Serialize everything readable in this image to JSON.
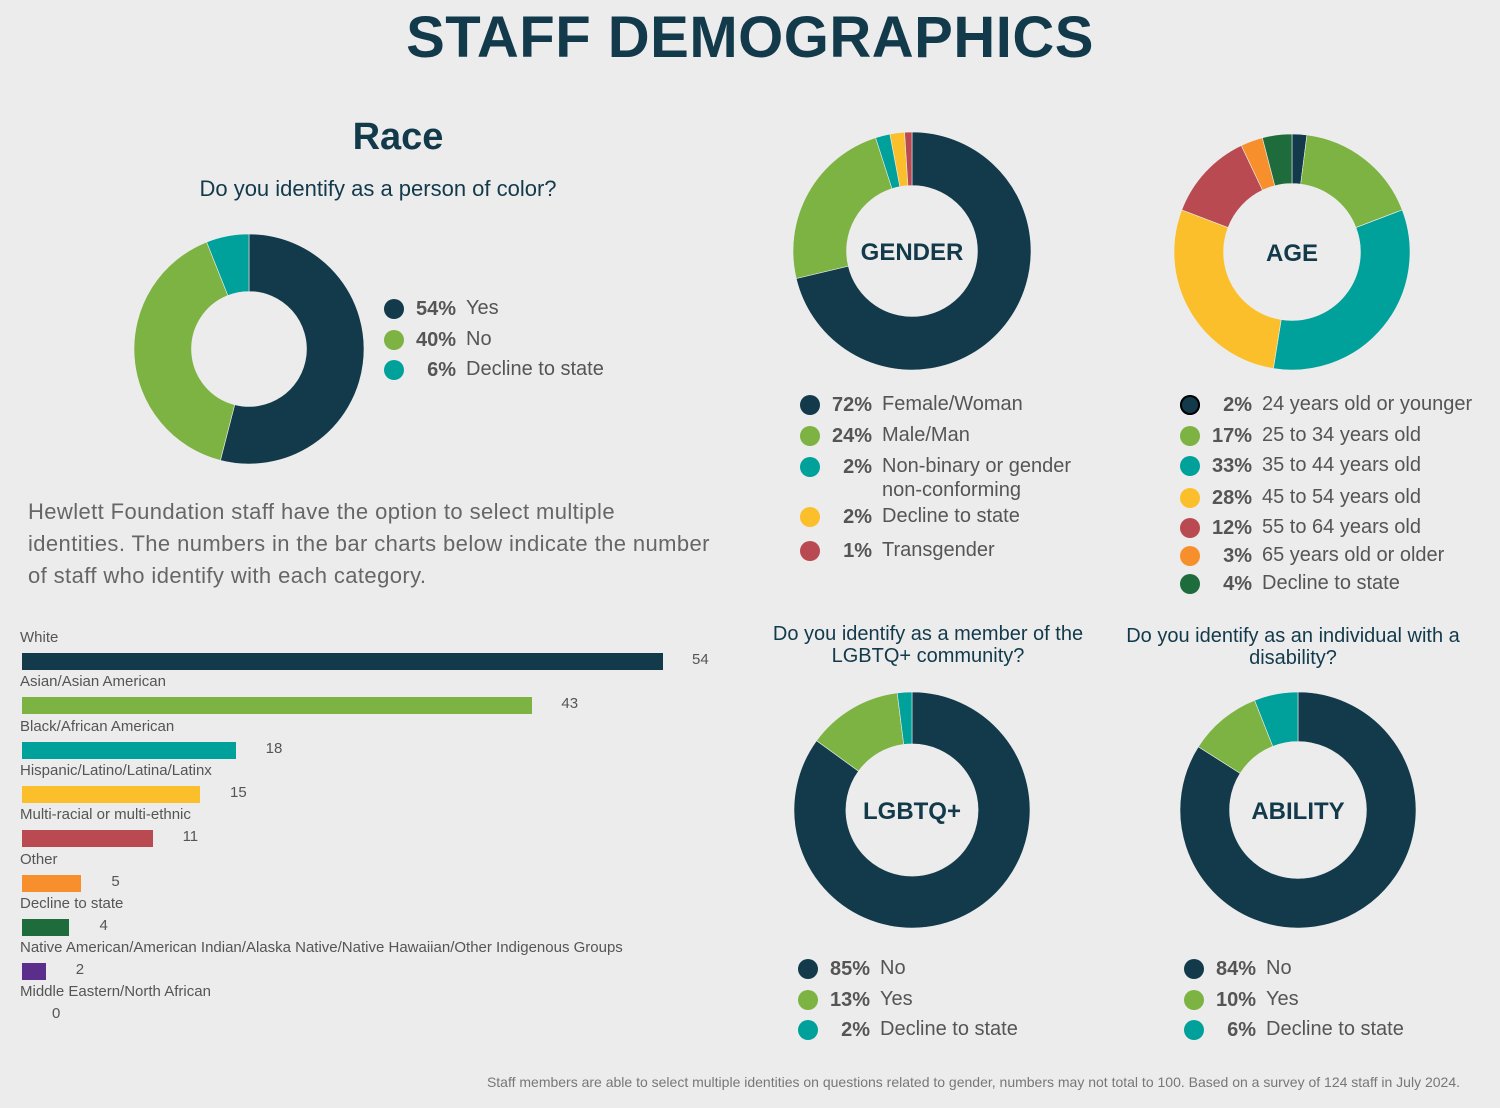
{
  "title": "STAFF DEMOGRAPHICS",
  "race": {
    "heading": "Race",
    "question": "Do you identify as a person of color?"
  },
  "note": "Hewlett Foundation staff have the option to select multiple identities. The numbers in the bar charts below indicate the number of staff who identify with each category.",
  "footnote": "Staff members are able to select multiple identities on questions related to gender, numbers may not total to 100. Based on a survey of 124 staff in July 2024.",
  "lgbtq_question": "Do you identify as a member of the LGBTQ+ community?",
  "disability_question": "Do you identify as an individual with a disability?",
  "colors": {
    "navy": "#123a4b",
    "green": "#7cb342",
    "teal": "#00a19a",
    "yellow": "#fbbf2c",
    "red": "#b94a51",
    "orange": "#f7902c",
    "darkgreen": "#1e6b3c",
    "purple": "#5b2e8c"
  },
  "chart_data": [
    {
      "id": "poc",
      "type": "pie",
      "donut": true,
      "title": "",
      "slices": [
        {
          "label": "Yes",
          "pct_label": "54%",
          "value": 54,
          "color": "#123a4b"
        },
        {
          "label": "No",
          "pct_label": "40%",
          "value": 40,
          "color": "#7cb342"
        },
        {
          "label": "Decline to state",
          "pct_label": "6%",
          "value": 6,
          "color": "#00a19a"
        }
      ]
    },
    {
      "id": "gender",
      "type": "pie",
      "donut": true,
      "title": "GENDER",
      "slices": [
        {
          "label": "Female/Woman",
          "pct_label": "72%",
          "value": 72,
          "color": "#123a4b"
        },
        {
          "label": "Male/Man",
          "pct_label": "24%",
          "value": 24,
          "color": "#7cb342"
        },
        {
          "label": "Non-binary or gender non-conforming",
          "pct_label": "2%",
          "value": 2,
          "color": "#00a19a"
        },
        {
          "label": "Decline to state",
          "pct_label": "2%",
          "value": 2,
          "color": "#fbbf2c"
        },
        {
          "label": "Transgender",
          "pct_label": "1%",
          "value": 1,
          "color": "#b94a51"
        }
      ]
    },
    {
      "id": "age",
      "type": "pie",
      "donut": true,
      "title": "AGE",
      "slices": [
        {
          "label": "24 years old or younger",
          "pct_label": "2%",
          "value": 2,
          "color": "#123a4b"
        },
        {
          "label": "25 to 34 years old",
          "pct_label": "17%",
          "value": 17,
          "color": "#7cb342"
        },
        {
          "label": "35 to 44 years old",
          "pct_label": "33%",
          "value": 33,
          "color": "#00a19a"
        },
        {
          "label": "45 to 54 years old",
          "pct_label": "28%",
          "value": 28,
          "color": "#fbbf2c"
        },
        {
          "label": "55 to 64 years old",
          "pct_label": "12%",
          "value": 12,
          "color": "#b94a51"
        },
        {
          "label": "65 years old or older",
          "pct_label": "3%",
          "value": 3,
          "color": "#f7902c"
        },
        {
          "label": "Decline to state",
          "pct_label": "4%",
          "value": 4,
          "color": "#1e6b3c"
        }
      ]
    },
    {
      "id": "lgbtq",
      "type": "pie",
      "donut": true,
      "title": "LGBTQ+",
      "slices": [
        {
          "label": "No",
          "pct_label": "85%",
          "value": 85,
          "color": "#123a4b"
        },
        {
          "label": "Yes",
          "pct_label": "13%",
          "value": 13,
          "color": "#7cb342"
        },
        {
          "label": "Decline to state",
          "pct_label": "2%",
          "value": 2,
          "color": "#00a19a"
        }
      ]
    },
    {
      "id": "ability",
      "type": "pie",
      "donut": true,
      "title": "ABILITY",
      "slices": [
        {
          "label": "No",
          "pct_label": "84%",
          "value": 84,
          "color": "#123a4b"
        },
        {
          "label": "Yes",
          "pct_label": "10%",
          "value": 10,
          "color": "#7cb342"
        },
        {
          "label": "Decline to state",
          "pct_label": "6%",
          "value": 6,
          "color": "#00a19a"
        }
      ]
    },
    {
      "id": "race_bars",
      "type": "bar",
      "orientation": "horizontal",
      "xlim": [
        0,
        54
      ],
      "categories": [
        "White",
        "Asian/Asian American",
        "Black/African American",
        "Hispanic/Latino/Latina/Latinx",
        "Multi-racial or multi-ethnic",
        "Other",
        "Decline to state",
        "Native American/American Indian/Alaska Native/Native Hawaiian/Other Indigenous Groups",
        "Middle Eastern/North African"
      ],
      "values": [
        54,
        43,
        18,
        15,
        11,
        5,
        4,
        2,
        0
      ],
      "colors": [
        "#123a4b",
        "#7cb342",
        "#00a19a",
        "#fbbf2c",
        "#b94a51",
        "#f7902c",
        "#1e6b3c",
        "#5b2e8c",
        "#888888"
      ]
    }
  ]
}
